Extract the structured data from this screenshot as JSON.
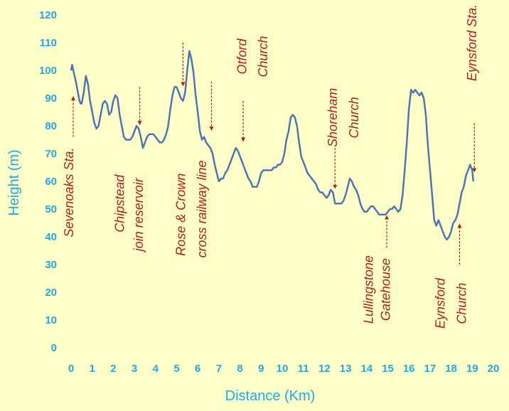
{
  "chart_data": {
    "type": "line",
    "title": "",
    "xlabel": "Distance (Km)",
    "ylabel": "Height (m)",
    "xlim": [
      0,
      20
    ],
    "ylim": [
      0,
      120
    ],
    "x_ticks": [
      "0",
      "1",
      "2",
      "3",
      "4",
      "5",
      "6",
      "7",
      "8",
      "9",
      "10",
      "11",
      "12",
      "13",
      "14",
      "15",
      "16",
      "17",
      "18",
      "19",
      "20"
    ],
    "y_ticks": [
      "0",
      "10",
      "20",
      "30",
      "40",
      "50",
      "60",
      "70",
      "80",
      "90",
      "100",
      "110",
      "120"
    ],
    "grid": false,
    "legend": "none",
    "colors": {
      "line": "#4a76b8",
      "axis_text": "#1ea9e6",
      "annotation": "#b51c1c",
      "background": "#ffffc7"
    },
    "series": [
      {
        "x": [
          0,
          0.05,
          0.1,
          0.2,
          0.3,
          0.4,
          0.45,
          0.5,
          0.6,
          0.7,
          0.8,
          0.9,
          1.0,
          1.1,
          1.2,
          1.3,
          1.4,
          1.5,
          1.6,
          1.7,
          1.8,
          1.9,
          2.0,
          2.1,
          2.2,
          2.3,
          2.4,
          2.5,
          2.6,
          2.7,
          2.8,
          2.9,
          3.0,
          3.1,
          3.2,
          3.3,
          3.4,
          3.5,
          3.6,
          3.7,
          3.8,
          3.9,
          4.0,
          4.1,
          4.2,
          4.3,
          4.4,
          4.5,
          4.6,
          4.7,
          4.8,
          4.9,
          5.0,
          5.1,
          5.2,
          5.3,
          5.4,
          5.5,
          5.6,
          5.7,
          5.8,
          5.9,
          6.0,
          6.1,
          6.2,
          6.3,
          6.4,
          6.5,
          6.6,
          6.7,
          6.8,
          6.9,
          7.0,
          7.1,
          7.2,
          7.3,
          7.4,
          7.5,
          7.6,
          7.7,
          7.8,
          7.9,
          8.0,
          8.1,
          8.2,
          8.3,
          8.4,
          8.5,
          8.6,
          8.7,
          8.8,
          8.9,
          9.0,
          9.1,
          9.2,
          9.3,
          9.4,
          9.5,
          9.6,
          9.7,
          9.8,
          9.9,
          10.0,
          10.1,
          10.2,
          10.3,
          10.4,
          10.5,
          10.6,
          10.7,
          10.8,
          10.9,
          11.0,
          11.1,
          11.2,
          11.3,
          11.4,
          11.5,
          11.6,
          11.7,
          11.8,
          11.9,
          12.0,
          12.1,
          12.2,
          12.3,
          12.4,
          12.5,
          12.6,
          12.7,
          12.8,
          12.9,
          13.0,
          13.1,
          13.2,
          13.3,
          13.4,
          13.5,
          13.6,
          13.7,
          13.8,
          13.9,
          14.0,
          14.1,
          14.2,
          14.3,
          14.4,
          14.5,
          14.6,
          14.7,
          14.8,
          14.9,
          15.0,
          15.1,
          15.2,
          15.3,
          15.4,
          15.5,
          15.6,
          15.7,
          15.8,
          15.9,
          16.0,
          16.1,
          16.2,
          16.3,
          16.4,
          16.5,
          16.6,
          16.7,
          16.8,
          16.9,
          17.0,
          17.1,
          17.2,
          17.3,
          17.4,
          17.5,
          17.6,
          17.7,
          17.8,
          17.9,
          18.0,
          18.1,
          18.2,
          18.3,
          18.4,
          18.5,
          18.6,
          18.7,
          18.8,
          18.9,
          19.0,
          19.05
        ],
        "y": [
          100,
          102,
          100,
          97,
          93,
          89,
          88,
          88,
          92,
          98,
          95,
          89,
          85,
          81,
          79,
          80,
          84,
          88,
          89,
          88,
          84,
          85,
          89,
          91,
          90,
          84,
          80,
          76,
          75,
          75,
          75,
          76,
          78,
          80,
          79,
          76,
          72,
          74,
          76,
          77,
          77,
          77,
          76,
          75,
          74,
          74,
          75,
          77,
          80,
          86,
          91,
          94,
          94,
          92,
          90,
          89,
          92,
          100,
          107,
          104,
          99,
          91,
          85,
          78,
          75,
          76,
          74,
          73,
          72,
          70,
          66,
          63,
          60,
          61,
          61,
          63,
          64,
          66,
          68,
          70,
          72,
          71,
          69,
          67,
          65,
          63,
          61,
          60,
          58,
          58,
          58,
          60,
          63,
          64,
          64,
          64,
          64,
          64,
          65,
          65,
          66,
          66,
          67,
          70,
          75,
          78,
          83,
          84,
          83,
          80,
          74,
          69,
          67,
          65,
          63,
          62,
          61,
          60,
          59,
          57,
          56,
          56,
          55,
          54,
          55,
          57,
          56,
          52,
          52,
          52,
          52,
          53,
          55,
          58,
          61,
          60,
          58,
          57,
          55,
          52,
          50,
          49,
          49,
          50,
          51,
          51,
          50,
          49,
          48,
          48,
          48,
          48,
          49,
          50,
          50,
          51,
          50,
          49,
          50,
          55,
          64,
          74,
          86,
          93,
          92,
          93,
          92,
          91,
          92,
          90,
          84,
          73,
          64,
          55,
          46,
          44,
          46,
          44,
          42,
          40,
          39,
          40,
          42,
          45,
          46,
          48,
          52,
          56,
          58,
          62,
          64,
          66,
          64,
          60
        ]
      }
    ],
    "annotations": [
      {
        "text": "Sevenoaks Sta.",
        "x": 0.1,
        "y": 56,
        "arrow_from_y": 76,
        "arrow_to_y": 90
      },
      {
        "text": "Chipstead",
        "x": 2.5,
        "y": 52,
        "arrow_from_y": null,
        "arrow_to_y": null
      },
      {
        "text": "join reservoir",
        "x": 3.4,
        "y": 48,
        "arrow_from_y": 94,
        "arrow_to_y": 81
      },
      {
        "text": "Rose & Crown",
        "x": 5.4,
        "y": 48,
        "arrow_from_y": 110,
        "arrow_to_y": 95
      },
      {
        "text": "cross railway line",
        "x": 6.4,
        "y": 50,
        "arrow_from_y": 96,
        "arrow_to_y": 79
      },
      {
        "text": "Otford",
        "x": 8.3,
        "y": 105,
        "arrow_from_y": 89,
        "arrow_to_y": 75
      },
      {
        "text": "Church",
        "x": 9.3,
        "y": 105,
        "arrow_from_y": null,
        "arrow_to_y": null
      },
      {
        "text": "Shoreham",
        "x": 12.6,
        "y": 83,
        "arrow_from_y": 72,
        "arrow_to_y": 58
      },
      {
        "text": "Church",
        "x": 13.6,
        "y": 83,
        "arrow_from_y": null,
        "arrow_to_y": null
      },
      {
        "text": "Lullingstone",
        "x": 14.3,
        "y": 21,
        "arrow_from_y": null,
        "arrow_to_y": null
      },
      {
        "text": "Gatehouse",
        "x": 15.1,
        "y": 21,
        "arrow_from_y": 36,
        "arrow_to_y": 47
      },
      {
        "text": "Eynsford",
        "x": 17.7,
        "y": 16,
        "arrow_from_y": null,
        "arrow_to_y": null
      },
      {
        "text": "Church",
        "x": 18.7,
        "y": 16,
        "arrow_from_y": 30,
        "arrow_to_y": 44
      },
      {
        "text": "Eynsford Sta.",
        "x": 19.2,
        "y": 110,
        "arrow_from_y": 81,
        "arrow_to_y": 64
      }
    ]
  }
}
